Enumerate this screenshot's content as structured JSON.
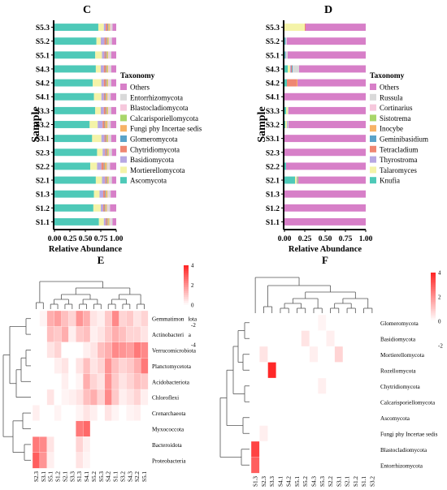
{
  "chart_data": [
    {
      "panel": "C",
      "type": "bar",
      "orientation": "horizontal",
      "stacked": true,
      "xlabel": "Relative Abundance",
      "ylabel": "Sample",
      "xlim": [
        0,
        1
      ],
      "xticks": [
        "0.00",
        "0.25",
        "0.50",
        "0.75",
        "1.00"
      ],
      "categories": [
        "S5.3",
        "S5.2",
        "S5.1",
        "S4.3",
        "S4.2",
        "S4.1",
        "S3.3",
        "S3.2",
        "S3.1",
        "S2.3",
        "S2.2",
        "S2.1",
        "S1.3",
        "S1.2",
        "S1.1"
      ],
      "legend_title": "Taxonomy",
      "legend_position": "right",
      "series": [
        {
          "name": "Ascomycota",
          "color": "#4ec9b8",
          "values": [
            0.71,
            0.68,
            0.66,
            0.67,
            0.62,
            0.64,
            0.66,
            0.57,
            0.61,
            0.69,
            0.58,
            0.67,
            0.64,
            0.63,
            0.72
          ]
        },
        {
          "name": "Mortierellomycota",
          "color": "#f4f3a8",
          "values": [
            0.09,
            0.07,
            0.11,
            0.08,
            0.14,
            0.12,
            0.09,
            0.13,
            0.15,
            0.09,
            0.11,
            0.1,
            0.09,
            0.12,
            0.08
          ]
        },
        {
          "name": "Basidiomycota",
          "color": "#b7a7e3",
          "values": [
            0.03,
            0.06,
            0.04,
            0.05,
            0.04,
            0.04,
            0.05,
            0.08,
            0.05,
            0.04,
            0.07,
            0.05,
            0.06,
            0.04,
            0.03
          ]
        },
        {
          "name": "Chytridiomycota",
          "color": "#ef8672",
          "values": [
            0.03,
            0.03,
            0.02,
            0.03,
            0.03,
            0.02,
            0.03,
            0.03,
            0.02,
            0.02,
            0.04,
            0.02,
            0.03,
            0.02,
            0.02
          ]
        },
        {
          "name": "Glomeromycota",
          "color": "#5aa3c9",
          "values": [
            0.01,
            0.01,
            0.01,
            0.01,
            0.01,
            0.01,
            0.01,
            0.01,
            0.01,
            0.01,
            0.01,
            0.01,
            0.01,
            0.01,
            0.01
          ]
        },
        {
          "name": "Fungi phy Incertae sedis",
          "color": "#f7b366",
          "values": [
            0.02,
            0.02,
            0.02,
            0.02,
            0.02,
            0.02,
            0.02,
            0.03,
            0.02,
            0.02,
            0.03,
            0.02,
            0.02,
            0.02,
            0.02
          ]
        },
        {
          "name": "Calcarisporiellomycota",
          "color": "#a9d66a",
          "values": [
            0.01,
            0.01,
            0.01,
            0.01,
            0.01,
            0.01,
            0.01,
            0.01,
            0.01,
            0.01,
            0.01,
            0.01,
            0.01,
            0.01,
            0.01
          ]
        },
        {
          "name": "Blastocladiomycota",
          "color": "#f6c8dc",
          "values": [
            0.02,
            0.02,
            0.02,
            0.02,
            0.02,
            0.02,
            0.02,
            0.02,
            0.02,
            0.02,
            0.02,
            0.02,
            0.02,
            0.02,
            0.02
          ]
        },
        {
          "name": "Entorrhizomycota",
          "color": "#d9d9d9",
          "values": [
            0.02,
            0.03,
            0.03,
            0.03,
            0.03,
            0.03,
            0.03,
            0.03,
            0.03,
            0.03,
            0.03,
            0.03,
            0.03,
            0.03,
            0.03
          ]
        },
        {
          "name": "Others",
          "color": "#d77fc8",
          "values": [
            0.06,
            0.07,
            0.08,
            0.08,
            0.08,
            0.09,
            0.08,
            0.09,
            0.08,
            0.07,
            0.1,
            0.07,
            0.09,
            0.1,
            0.06
          ]
        }
      ]
    },
    {
      "panel": "D",
      "type": "bar",
      "orientation": "horizontal",
      "stacked": true,
      "xlabel": "Relative Abundance",
      "ylabel": "Sample",
      "xlim": [
        0,
        1
      ],
      "xticks": [
        "0.00",
        "0.25",
        "0.50",
        "0.75",
        "1.00"
      ],
      "categories": [
        "S5.3",
        "S5.2",
        "S5.1",
        "S4.3",
        "S4.2",
        "S4.1",
        "S3.3",
        "S3.2",
        "S3.1",
        "S2.3",
        "S2.2",
        "S2.1",
        "S1.3",
        "S1.2",
        "S1.1"
      ],
      "legend_title": "Taxonomy",
      "legend_position": "right",
      "series": [
        {
          "name": "Knufia",
          "color": "#4ec9b8",
          "values": [
            0.0,
            0.01,
            0.01,
            0.04,
            0.03,
            0.0,
            0.02,
            0.01,
            0.0,
            0.0,
            0.02,
            0.13,
            0.0,
            0.0,
            0.0
          ]
        },
        {
          "name": "Talaromyces",
          "color": "#f4f3a8",
          "values": [
            0.25,
            0.0,
            0.0,
            0.03,
            0.0,
            0.0,
            0.02,
            0.02,
            0.0,
            0.0,
            0.0,
            0.02,
            0.0,
            0.0,
            0.0
          ]
        },
        {
          "name": "Thyrostroma",
          "color": "#b7a7e3",
          "values": [
            0.0,
            0.01,
            0.01,
            0.01,
            0.0,
            0.0,
            0.0,
            0.01,
            0.0,
            0.0,
            0.0,
            0.01,
            0.0,
            0.0,
            0.0
          ]
        },
        {
          "name": "Tetracladium",
          "color": "#ef8672",
          "values": [
            0.01,
            0.0,
            0.0,
            0.01,
            0.12,
            0.0,
            0.0,
            0.0,
            0.0,
            0.0,
            0.0,
            0.0,
            0.0,
            0.0,
            0.0
          ]
        },
        {
          "name": "Geminibasidium",
          "color": "#5aa3c9",
          "values": [
            0.0,
            0.0,
            0.0,
            0.01,
            0.0,
            0.0,
            0.0,
            0.0,
            0.0,
            0.0,
            0.0,
            0.0,
            0.0,
            0.0,
            0.0
          ]
        },
        {
          "name": "Inocybe",
          "color": "#f7b366",
          "values": [
            0.0,
            0.0,
            0.0,
            0.0,
            0.01,
            0.0,
            0.0,
            0.0,
            0.0,
            0.0,
            0.0,
            0.0,
            0.0,
            0.0,
            0.0
          ]
        },
        {
          "name": "Sistotrema",
          "color": "#a9d66a",
          "values": [
            0.0,
            0.0,
            0.0,
            0.0,
            0.0,
            0.0,
            0.0,
            0.0,
            0.0,
            0.0,
            0.0,
            0.01,
            0.0,
            0.0,
            0.0
          ]
        },
        {
          "name": "Cortinarius",
          "color": "#f6c8dc",
          "values": [
            0.0,
            0.0,
            0.0,
            0.0,
            0.0,
            0.0,
            0.0,
            0.0,
            0.0,
            0.0,
            0.0,
            0.0,
            0.0,
            0.0,
            0.0
          ]
        },
        {
          "name": "Russula",
          "color": "#d9d9d9",
          "values": [
            0.0,
            0.01,
            0.02,
            0.08,
            0.0,
            0.0,
            0.01,
            0.01,
            0.0,
            0.0,
            0.0,
            0.0,
            0.0,
            0.0,
            0.0
          ]
        },
        {
          "name": "Others",
          "color": "#d77fc8",
          "values": [
            0.74,
            0.97,
            0.96,
            0.82,
            0.84,
            1.0,
            0.95,
            0.95,
            1.0,
            1.0,
            0.98,
            0.83,
            1.0,
            1.0,
            1.0
          ]
        }
      ]
    },
    {
      "panel": "E",
      "type": "heatmap",
      "colorbar_ticks": [
        "4",
        "2",
        "0",
        "-2",
        "-4"
      ],
      "colorbar_range": [
        -4,
        4
      ],
      "colors": {
        "low": "#0000ff",
        "mid": "#ffffff",
        "high": "#ff0000"
      },
      "columns": [
        "S2.3",
        "S3.1",
        "S5.1",
        "S1.2",
        "S2.1",
        "S3.3",
        "S1.3",
        "S4.1",
        "S5.2",
        "S5.3",
        "S4.2",
        "S1.1",
        "S3.2",
        "S4.3",
        "S2.2",
        "S5.1"
      ],
      "rows": [
        "Gemmatimonadota",
        "Actinobacteriota",
        "Verrucomicrobiota",
        "Planctomycetota",
        "Acidobacteriota",
        "Chloroflexi",
        "Crenarchaeota",
        "Myxococcota",
        "Bacteroidota",
        "Proteobacteria"
      ],
      "values": [
        [
          -3.0,
          0.2,
          1.5,
          1.8,
          1.2,
          0.8,
          2.0,
          1.5,
          0.5,
          0.3,
          1.0,
          2.2,
          0.8,
          1.0,
          0.5,
          0.8
        ],
        [
          -1.5,
          -0.5,
          1.2,
          1.0,
          1.5,
          0.3,
          1.0,
          1.2,
          0.3,
          0.5,
          1.0,
          1.5,
          1.2,
          0.8,
          0.8,
          0.5
        ],
        [
          -1.0,
          -2.0,
          0.5,
          0.8,
          -0.3,
          -1.0,
          -0.5,
          0.3,
          0.5,
          1.2,
          1.5,
          2.2,
          2.0,
          1.8,
          2.5,
          2.2
        ],
        [
          -2.0,
          -1.5,
          -0.8,
          0.3,
          0.5,
          -0.5,
          0.5,
          1.2,
          0.5,
          0.8,
          2.0,
          1.2,
          0.8,
          1.0,
          1.5,
          2.5
        ],
        [
          -1.5,
          -1.2,
          -0.5,
          -0.3,
          0.3,
          -0.5,
          0.2,
          1.5,
          0.8,
          0.5,
          2.0,
          1.0,
          0.5,
          0.8,
          1.2,
          1.0
        ],
        [
          -0.5,
          -1.0,
          0.5,
          -0.5,
          0.2,
          0.3,
          0.5,
          1.2,
          1.5,
          0.8,
          2.2,
          1.0,
          0.3,
          0.5,
          0.8,
          0.3
        ],
        [
          0.3,
          -0.5,
          -0.3,
          0.2,
          -0.5,
          -0.3,
          0.2,
          0.5,
          0.3,
          -0.2,
          0.5,
          0.2,
          -0.3,
          0.2,
          0.3,
          -0.2
        ],
        [
          -0.5,
          -1.5,
          -1.0,
          -0.5,
          -1.2,
          -1.5,
          2.5,
          2.8,
          -0.5,
          -1.0,
          -0.8,
          -1.2,
          -1.5,
          -0.8,
          -1.0,
          -1.2
        ],
        [
          2.5,
          2.2,
          0.5,
          -0.5,
          -0.8,
          -1.0,
          0.8,
          0.3,
          -0.5,
          -0.8,
          -1.0,
          -0.3,
          -0.5,
          -0.8,
          -1.0,
          -1.2
        ],
        [
          3.0,
          2.0,
          0.3,
          -0.5,
          -0.8,
          -1.2,
          0.5,
          0.2,
          -0.5,
          -0.8,
          -1.0,
          -0.8,
          -0.8,
          -1.0,
          -1.2,
          -1.5
        ]
      ]
    },
    {
      "panel": "F",
      "type": "heatmap",
      "colorbar_ticks": [
        "4",
        "2",
        "0",
        "-2"
      ],
      "colorbar_range": [
        -2,
        4
      ],
      "colors": {
        "low": "#0000ff",
        "mid": "#ffffff",
        "high": "#ff0000"
      },
      "columns": [
        "S1.3",
        "S2.3",
        "S3.3",
        "S4.1",
        "S4.2",
        "S5.1",
        "S5.2",
        "S4.3",
        "S5.3",
        "S2.2",
        "S3.1",
        "S2.1",
        "S1.2",
        "S1.1",
        "S3.2"
      ],
      "rows": [
        "Glomeromycota",
        "Basidiomycota",
        "Mortierellomycota",
        "Rozellomycota",
        "Chytridiomycota",
        "Calcarisporiellomycota",
        "Ascomycota",
        "Fungi phy Incertae sedis",
        "Blastocladiomycota",
        "Entorrhizomycota"
      ],
      "values": [
        [
          -1.0,
          -2.0,
          -1.2,
          -1.0,
          -1.3,
          -1.0,
          -0.8,
          -1.0,
          0.2,
          -0.6,
          -1.4,
          -1.5,
          -1.0,
          -1.2,
          -1.0
        ],
        [
          -1.3,
          -1.0,
          -1.5,
          -0.8,
          -1.2,
          -1.0,
          0.5,
          -0.8,
          -0.3,
          0.3,
          -1.5,
          -1.0,
          -0.8,
          -1.0,
          -0.5
        ],
        [
          -0.8,
          0.5,
          -0.3,
          -1.0,
          -0.8,
          -0.5,
          -1.0,
          0.3,
          -0.8,
          -1.0,
          0.8,
          -0.5,
          -1.2,
          -1.5,
          -0.8
        ],
        [
          -0.6,
          -0.5,
          4.0,
          -1.2,
          -0.8,
          -1.0,
          -0.5,
          -1.0,
          -1.0,
          -0.8,
          -1.2,
          -0.5,
          -1.0,
          -1.2,
          -0.8
        ],
        [
          -1.0,
          -0.8,
          -1.5,
          -2.0,
          -1.0,
          -0.5,
          -0.3,
          -0.8,
          0.3,
          -1.0,
          -1.0,
          -0.8,
          -0.5,
          -1.0,
          -1.2
        ],
        [
          -1.0,
          -1.2,
          -0.8,
          -0.5,
          -1.0,
          -1.5,
          -0.8,
          -1.0,
          -1.2,
          -0.5,
          -0.8,
          -1.0,
          -1.2,
          -0.5,
          -1.8
        ],
        [
          -1.5,
          -1.2,
          -0.8,
          -1.0,
          -0.5,
          -0.8,
          -1.0,
          -0.5,
          -2.0,
          -1.8,
          -1.0,
          -0.3,
          -0.5,
          -0.8,
          -1.0
        ],
        [
          -1.0,
          0.3,
          -0.5,
          -1.0,
          -0.8,
          -1.0,
          -0.5,
          -1.0,
          -0.8,
          -1.5,
          -1.2,
          -0.5,
          -1.0,
          -0.5,
          -0.8
        ],
        [
          3.5,
          -1.0,
          -0.8,
          -1.2,
          -1.0,
          -1.0,
          -0.8,
          -0.8,
          -1.0,
          -1.0,
          -0.8,
          -1.0,
          -0.8,
          -1.0,
          -1.0
        ],
        [
          3.0,
          -0.5,
          -0.8,
          -1.0,
          -1.0,
          -0.8,
          -1.0,
          -1.2,
          -0.8,
          -0.8,
          -1.0,
          -1.2,
          -0.8,
          -1.0,
          -0.8
        ]
      ]
    }
  ]
}
